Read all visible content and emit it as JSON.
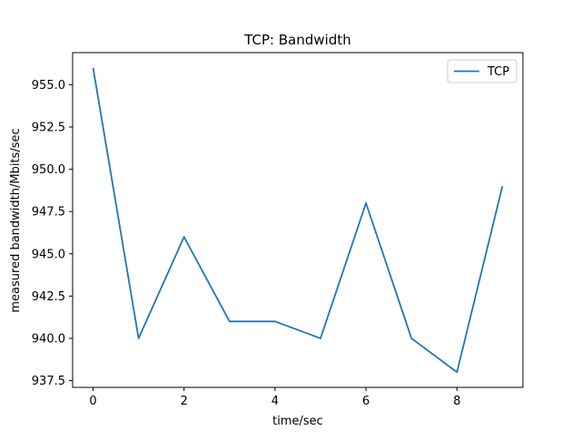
{
  "chart_data": {
    "type": "line",
    "title": "TCP: Bandwidth",
    "xlabel": "time/sec",
    "ylabel": "measured bandwidth/Mbits/sec",
    "xlim": [
      -0.45,
      9.45
    ],
    "ylim": [
      937.1,
      956.9
    ],
    "x_ticks": [
      0,
      2,
      4,
      6,
      8
    ],
    "x_tick_labels": [
      "0",
      "2",
      "4",
      "6",
      "8"
    ],
    "y_ticks": [
      937.5,
      940.0,
      942.5,
      945.0,
      947.5,
      950.0,
      952.5,
      955.0
    ],
    "y_tick_labels": [
      "937.5",
      "940.0",
      "942.5",
      "945.0",
      "947.5",
      "950.0",
      "952.5",
      "955.0"
    ],
    "grid": false,
    "legend_position": "top-right",
    "series": [
      {
        "name": "TCP",
        "color": "#1f77b4",
        "x": [
          0,
          1,
          2,
          3,
          4,
          5,
          6,
          7,
          8,
          9
        ],
        "y": [
          956,
          940,
          946,
          941,
          941,
          940,
          948,
          940,
          938,
          949
        ]
      }
    ]
  }
}
